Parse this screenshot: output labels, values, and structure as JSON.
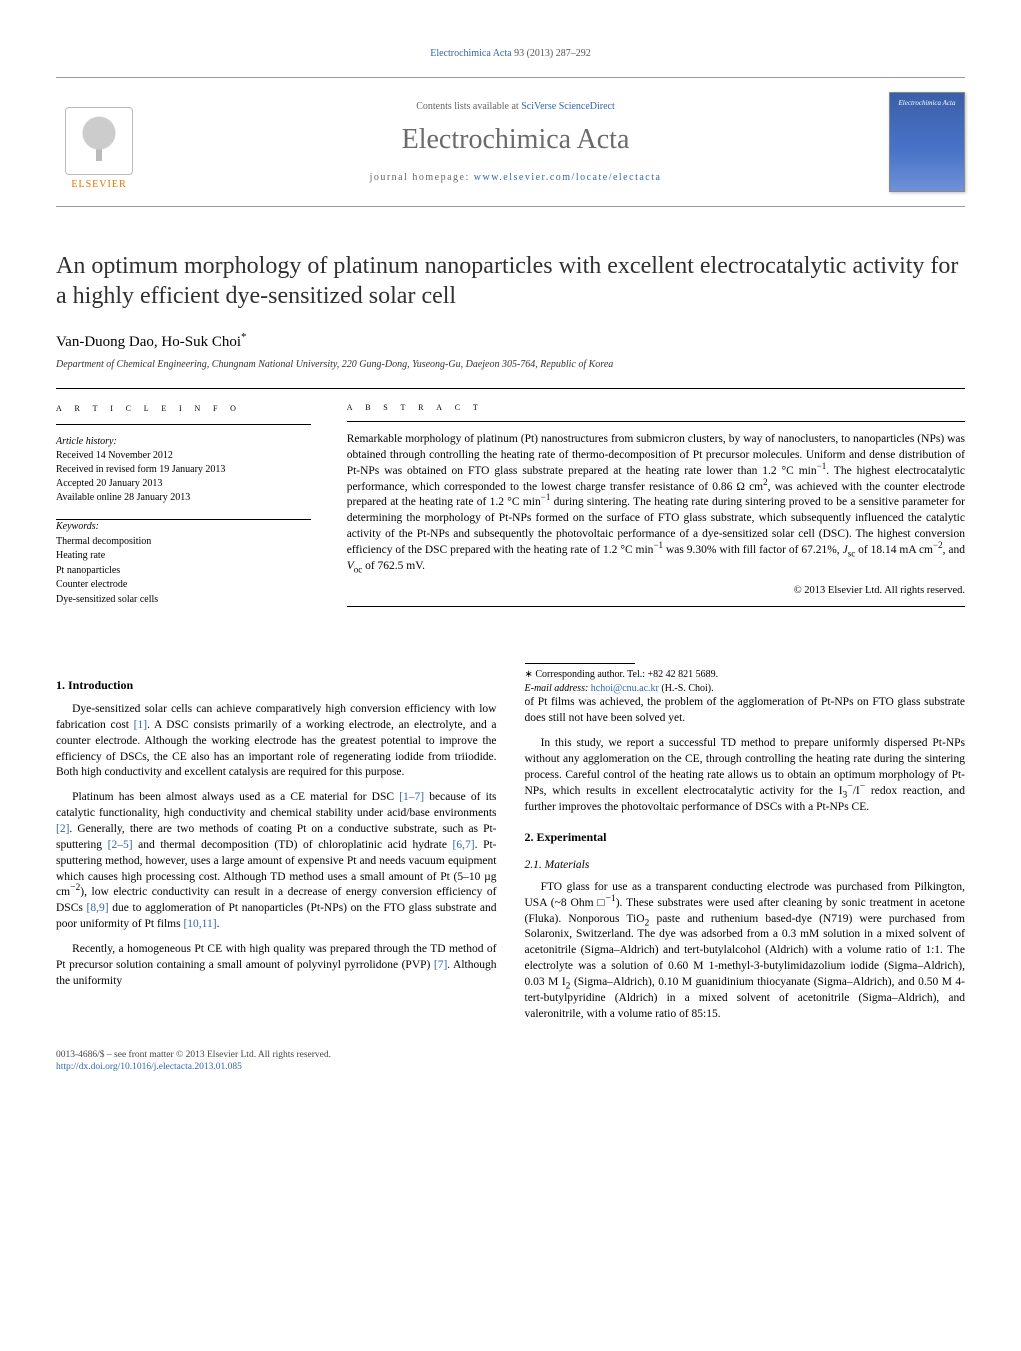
{
  "colors": {
    "link": "#3366aa",
    "elsevier_orange": "#e57200",
    "text": "#000000",
    "muted": "#666666",
    "cover_gradient_top": "#3a5fa8",
    "cover_gradient_bottom": "#6f91d6",
    "background": "#ffffff"
  },
  "typography": {
    "base_font": "Georgia, 'Times New Roman', serif",
    "title_fontsize_pt": 24,
    "journal_fontsize_pt": 28,
    "body_fontsize_pt": 11.5,
    "small_fontsize_pt": 10
  },
  "top_citation": {
    "journal_link": "Electrochimica Acta",
    "rest": " 93 (2013) 287–292"
  },
  "banner": {
    "contents_prefix": "Contents lists available at ",
    "contents_link": "SciVerse ScienceDirect",
    "journal_title": "Electrochimica Acta",
    "homepage_prefix": "journal homepage: ",
    "homepage_link": "www.elsevier.com/locate/electacta",
    "publisher_word": "ELSEVIER",
    "cover_label": "Electrochimica Acta"
  },
  "article": {
    "title": "An optimum morphology of platinum nanoparticles with excellent electrocatalytic activity for a highly efficient dye-sensitized solar cell",
    "authors_html": "Van-Duong Dao, Ho-Suk Choi",
    "corr_mark": "*",
    "affiliation": "Department of Chemical Engineering, Chungnam National University, 220 Gung-Dong, Yuseong-Gu, Daejeon 305-764, Republic of Korea"
  },
  "info": {
    "heading": "a r t i c l e   i n f o",
    "history_title": "Article history:",
    "history": [
      "Received 14 November 2012",
      "Received in revised form 19 January 2013",
      "Accepted 20 January 2013",
      "Available online 28 January 2013"
    ],
    "keywords_title": "Keywords:",
    "keywords": [
      "Thermal decomposition",
      "Heating rate",
      "Pt nanoparticles",
      "Counter electrode",
      "Dye-sensitized solar cells"
    ]
  },
  "abstract": {
    "heading": "a b s t r a c t",
    "text_html": "Remarkable morphology of platinum (Pt) nanostructures from submicron clusters, by way of nanoclusters, to nanoparticles (NPs) was obtained through controlling the heating rate of thermo-decomposition of Pt precursor molecules. Uniform and dense distribution of Pt-NPs was obtained on FTO glass substrate prepared at the heating rate lower than 1.2 °C min<sup>−1</sup>. The highest electrocatalytic performance, which corresponded to the lowest charge transfer resistance of 0.86 Ω cm<sup>2</sup>, was achieved with the counter electrode prepared at the heating rate of 1.2 °C min<sup>−1</sup> during sintering. The heating rate during sintering proved to be a sensitive parameter for determining the morphology of Pt-NPs formed on the surface of FTO glass substrate, which subsequently influenced the catalytic activity of the Pt-NPs and subsequently the photovoltaic performance of a dye-sensitized solar cell (DSC). The highest conversion efficiency of the DSC prepared with the heating rate of 1.2 °C min<sup>−1</sup> was 9.30% with fill factor of 67.21%, <i>J</i><sub>sc</sub> of 18.14 mA cm<sup>−2</sup>, and <i>V</i><sub>oc</sub> of 762.5 mV.",
    "copyright": "© 2013 Elsevier Ltd. All rights reserved."
  },
  "body": {
    "intro_heading": "1. Introduction",
    "intro_paragraphs": [
      "Dye-sensitized solar cells can achieve comparatively high conversion efficiency with low fabrication cost <a>[1]</a>. A DSC consists primarily of a working electrode, an electrolyte, and a counter electrode. Although the working electrode has the greatest potential to improve the efficiency of DSCs, the CE also has an important role of regenerating iodide from triiodide. Both high conductivity and excellent catalysis are required for this purpose.",
      "Platinum has been almost always used as a CE material for DSC <a>[1–7]</a> because of its catalytic functionality, high conductivity and chemical stability under acid/base environments <a>[2]</a>. Generally, there are two methods of coating Pt on a conductive substrate, such as Pt-sputtering <a>[2–5]</a> and thermal decomposition (TD) of chloroplatinic acid hydrate <a>[6,7]</a>. Pt-sputtering method, however, uses a large amount of expensive Pt and needs vacuum equipment which causes high processing cost. Although TD method uses a small amount of Pt (5–10 µg cm<sup>−2</sup>), low electric conductivity can result in a decrease of energy conversion efficiency of DSCs <a>[8,9]</a> due to agglomeration of Pt nanoparticles (Pt-NPs) on the FTO glass substrate and poor uniformity of Pt films <a>[10,11]</a>.",
      "Recently, a homogeneous Pt CE with high quality was prepared through the TD method of Pt precursor solution containing a small amount of polyvinyl pyrrolidone (PVP) <a>[7]</a>. Although the uniformity",
      "of Pt films was achieved, the problem of the agglomeration of Pt-NPs on FTO glass substrate does still not have been solved yet.",
      "In this study, we report a successful TD method to prepare uniformly dispersed Pt-NPs without any agglomeration on the CE, through controlling the heating rate during the sintering process. Careful control of the heating rate allows us to obtain an optimum morphology of Pt-NPs, which results in excellent electrocatalytic activity for the I<sub>3</sub><sup>−</sup>/I<sup>−</sup> redox reaction, and further improves the photovoltaic performance of DSCs with a Pt-NPs CE."
    ],
    "experimental_heading": "2. Experimental",
    "materials_heading": "2.1. Materials",
    "materials_paragraph": "FTO glass for use as a transparent conducting electrode was purchased from Pilkington, USA (~8 Ohm □<sup>−1</sup>). These substrates were used after cleaning by sonic treatment in acetone (Fluka). Nonporous TiO<sub>2</sub> paste and ruthenium based-dye (N719) were purchased from Solaronix, Switzerland. The dye was adsorbed from a 0.3 mM solution in a mixed solvent of acetonitrile (Sigma–Aldrich) and tert-butylalcohol (Aldrich) with a volume ratio of 1:1. The electrolyte was a solution of 0.60 M 1-methyl-3-butylimidazolium iodide (Sigma–Aldrich), 0.03 M I<sub>2</sub> (Sigma–Aldrich), 0.10 M guanidinium thiocyanate (Sigma–Aldrich), and 0.50 M 4-tert-butylpyridine (Aldrich) in a mixed solvent of acetonitrile (Sigma–Aldrich), and valeronitrile, with a volume ratio of 85:15."
  },
  "footnote": {
    "line1": "∗ Corresponding author. Tel.: +82 42 821 5689.",
    "line2_label": "E-mail address: ",
    "line2_email": "hchoi@cnu.ac.kr",
    "line2_tail": " (H.-S. Choi)."
  },
  "footer": {
    "line1": "0013-4686/$ – see front matter © 2013 Elsevier Ltd. All rights reserved.",
    "doi": "http://dx.doi.org/10.1016/j.electacta.2013.01.085"
  }
}
